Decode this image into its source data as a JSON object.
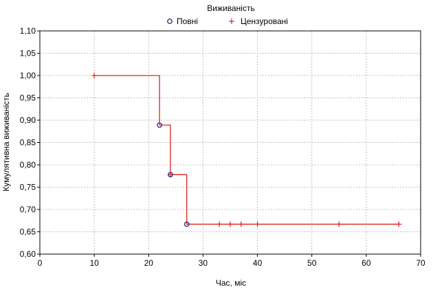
{
  "colors": {
    "curve": "#e0201f",
    "complete_marker": "#3b3f8f",
    "censored_marker": "#e0201f",
    "grid": "#bfbfbf",
    "axis": "#000000"
  },
  "chart_data": {
    "type": "line",
    "title": "Виживаність",
    "xlabel": "Час, міс",
    "ylabel": "Кумулятивна виживаність",
    "xlim": [
      0,
      70
    ],
    "ylim": [
      0.6,
      1.1
    ],
    "x_ticks": [
      "0",
      "10",
      "20",
      "30",
      "40",
      "50",
      "60",
      "70"
    ],
    "y_ticks": [
      "0,60",
      "0,65",
      "0,70",
      "0,75",
      "0,80",
      "0,85",
      "0,90",
      "0,95",
      "1,00",
      "1,05",
      "1,10"
    ],
    "grid": true,
    "legend_position": "top-center",
    "legend": [
      {
        "name": "Повні",
        "marker": "circle"
      },
      {
        "name": "Цензуровані",
        "marker": "plus"
      }
    ],
    "curve_steps": [
      {
        "x": 10,
        "y": 1.0
      },
      {
        "x": 22,
        "y": 0.889
      },
      {
        "x": 24,
        "y": 0.778
      },
      {
        "x": 27,
        "y": 0.667
      },
      {
        "x": 66,
        "y": 0.667
      }
    ],
    "complete_events": [
      {
        "x": 22,
        "y": 0.889
      },
      {
        "x": 24,
        "y": 0.778
      },
      {
        "x": 27,
        "y": 0.667
      }
    ],
    "censored_events": [
      {
        "x": 10,
        "y": 1.0
      },
      {
        "x": 24,
        "y": 0.778
      },
      {
        "x": 33,
        "y": 0.667
      },
      {
        "x": 35,
        "y": 0.667
      },
      {
        "x": 37,
        "y": 0.667
      },
      {
        "x": 40,
        "y": 0.667
      },
      {
        "x": 55,
        "y": 0.667
      },
      {
        "x": 66,
        "y": 0.667
      }
    ]
  }
}
